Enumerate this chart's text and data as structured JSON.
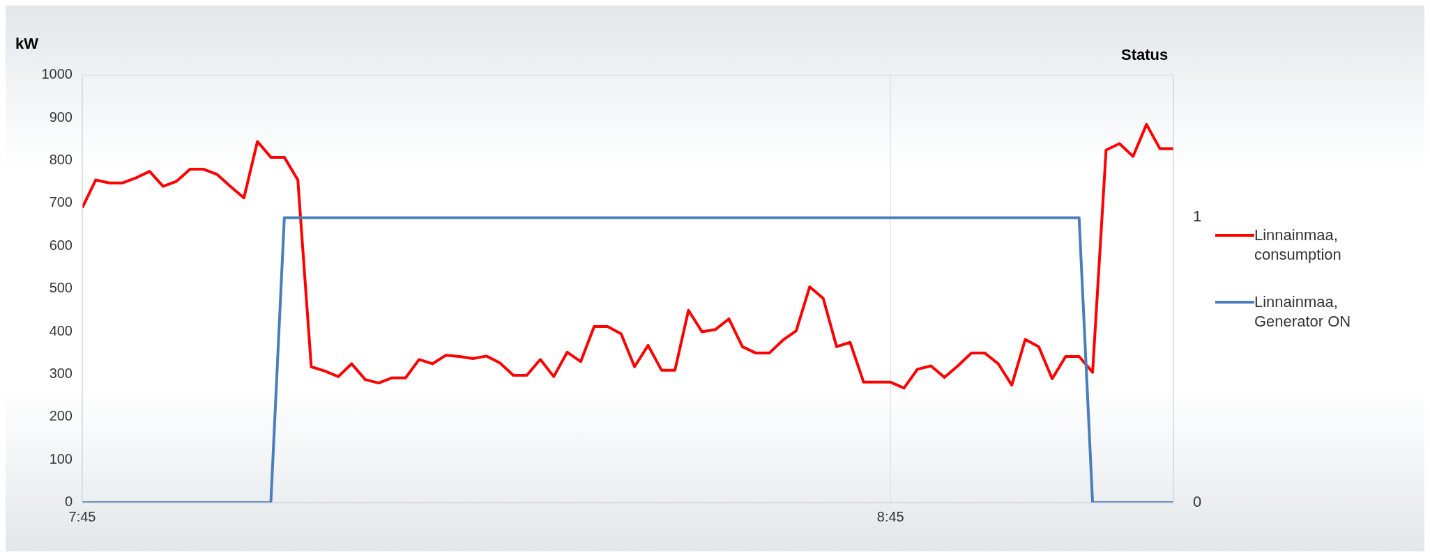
{
  "chart_data": {
    "type": "line",
    "ylabel": "kW",
    "y2label": "Status",
    "x": [
      7.75,
      7.7667,
      7.7833,
      7.8,
      7.8167,
      7.8333,
      7.85,
      7.8667,
      7.8833,
      7.9,
      7.9167,
      7.9333,
      7.95,
      7.9667,
      7.9833,
      8.0,
      8.0167,
      8.0333,
      8.05,
      8.0667,
      8.0833,
      8.1,
      8.1167,
      8.1333,
      8.15,
      8.1667,
      8.1833,
      8.2,
      8.2167,
      8.2333,
      8.25,
      8.2667,
      8.2833,
      8.3,
      8.3167,
      8.3333,
      8.35,
      8.3667,
      8.3833,
      8.4,
      8.4167,
      8.4333,
      8.45,
      8.4667,
      8.4833,
      8.5,
      8.5167,
      8.5333,
      8.55,
      8.5667,
      8.5833,
      8.6,
      8.6167,
      8.6333,
      8.65,
      8.6667,
      8.6833,
      8.7,
      8.7167,
      8.7333,
      8.75,
      8.7667,
      8.7833,
      8.8,
      8.8167,
      8.8333,
      8.85,
      8.8667,
      8.8833,
      8.9,
      8.9167,
      8.9333,
      8.95,
      8.9667,
      8.9833,
      9.0,
      9.0167,
      9.0333,
      9.05,
      9.0667,
      9.0833,
      9.1
    ],
    "series": [
      {
        "name": "Linnainmaa, consumption",
        "color": "#ff0000",
        "values": [
          690,
          755,
          748,
          748,
          760,
          775,
          740,
          752,
          780,
          780,
          768,
          740,
          713,
          845,
          808,
          808,
          755,
          318,
          308,
          295,
          325,
          288,
          280,
          292,
          292,
          335,
          325,
          345,
          342,
          337,
          343,
          327,
          298,
          298,
          335,
          295,
          352,
          330,
          412,
          412,
          395,
          318,
          368,
          310,
          310,
          450,
          400,
          405,
          430,
          365,
          350,
          350,
          380,
          402,
          505,
          478,
          365,
          375,
          282,
          282,
          282,
          268,
          312,
          320,
          293,
          320,
          350,
          350,
          325,
          275,
          382,
          365,
          290,
          342,
          342,
          305,
          825,
          840,
          810,
          885,
          828,
          828
        ]
      },
      {
        "name": "Linnainmaa, Generator ON",
        "color": "#4a7ebb",
        "axis": "y2",
        "values": [
          0,
          0,
          0,
          0,
          0,
          0,
          0,
          0,
          0,
          0,
          0,
          0,
          0,
          0,
          0,
          1,
          1,
          1,
          1,
          1,
          1,
          1,
          1,
          1,
          1,
          1,
          1,
          1,
          1,
          1,
          1,
          1,
          1,
          1,
          1,
          1,
          1,
          1,
          1,
          1,
          1,
          1,
          1,
          1,
          1,
          1,
          1,
          1,
          1,
          1,
          1,
          1,
          1,
          1,
          1,
          1,
          1,
          1,
          1,
          1,
          1,
          1,
          1,
          1,
          1,
          1,
          1,
          1,
          1,
          1,
          1,
          1,
          1,
          1,
          1,
          0,
          0,
          0,
          0,
          0,
          0,
          0
        ]
      }
    ],
    "xlim": [
      7.75,
      9.1
    ],
    "xticks": [
      {
        "value": 7.75,
        "label": "7:45"
      },
      {
        "value": 8.75,
        "label": "8:45"
      }
    ],
    "ylim": [
      0,
      1000
    ],
    "yticks": [
      0,
      100,
      200,
      300,
      400,
      500,
      600,
      700,
      800,
      900,
      1000
    ],
    "y2lim": [
      0,
      1.5
    ],
    "y2ticks": [
      0,
      1
    ],
    "grid": true,
    "legend": "right",
    "marker": "none",
    "line_style": "solid"
  }
}
